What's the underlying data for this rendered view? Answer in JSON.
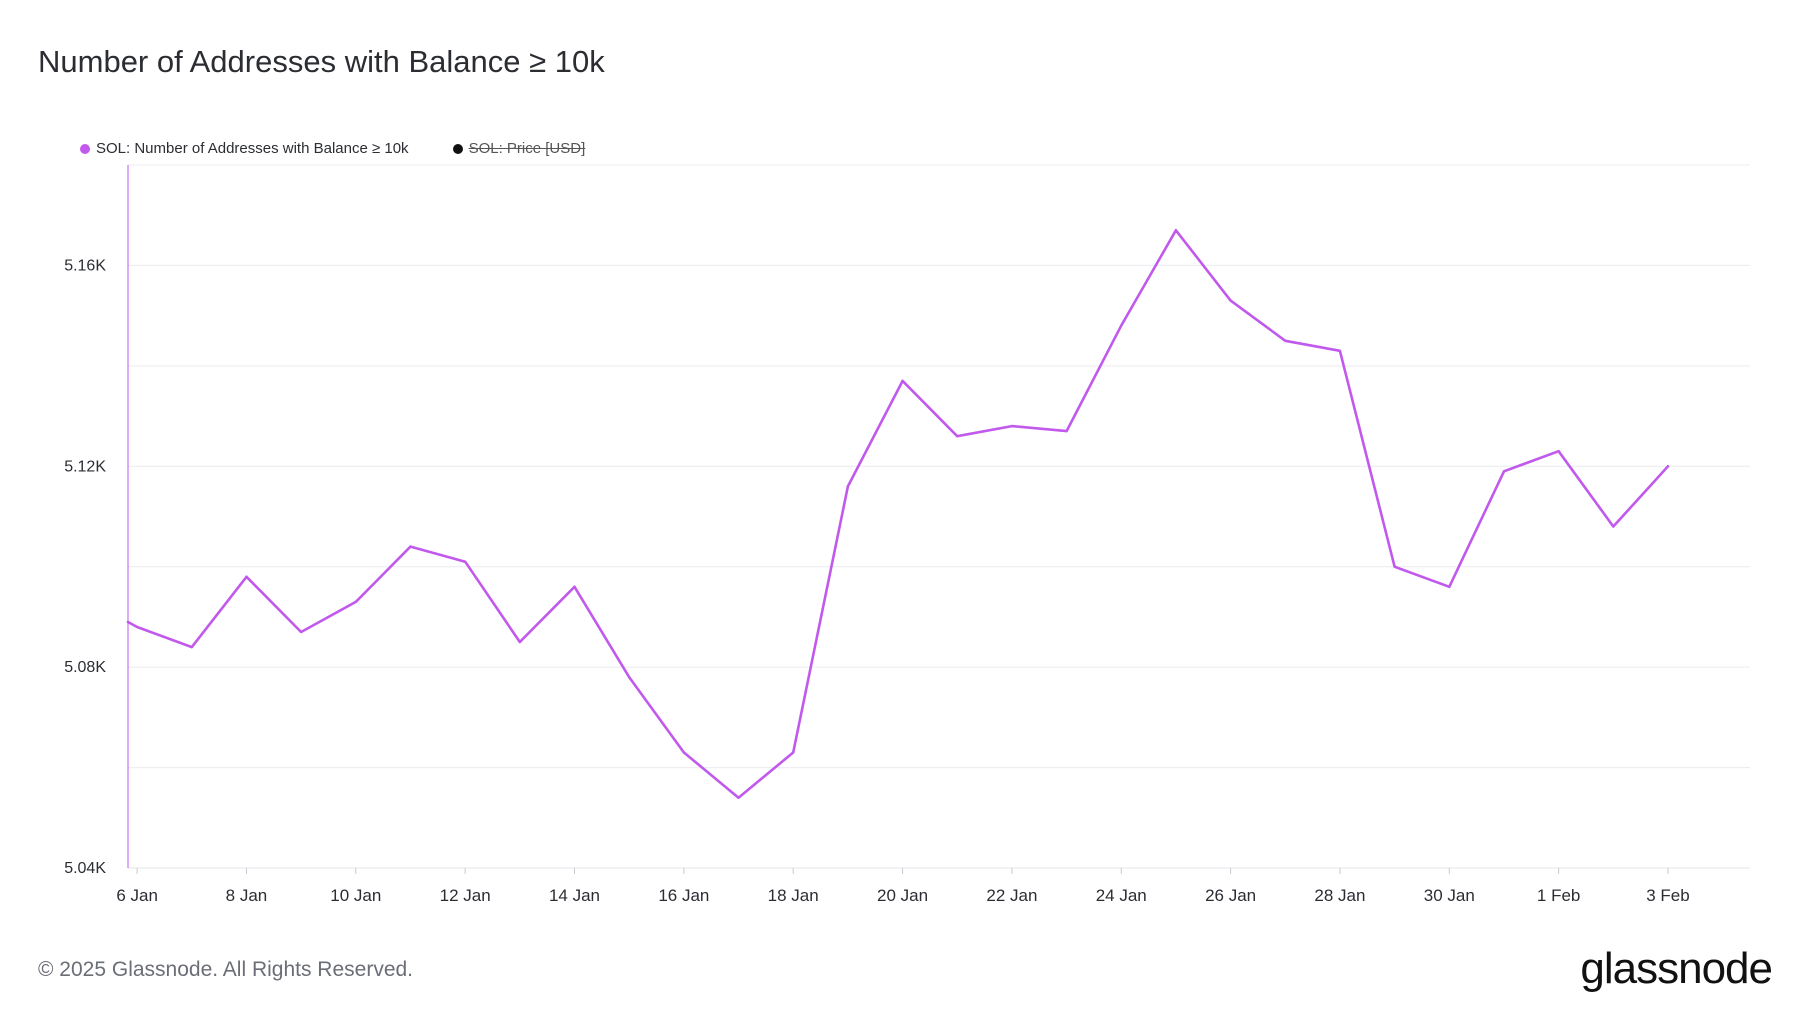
{
  "title": "Number of Addresses with Balance ≥ 10k",
  "legend": [
    {
      "label": "SOL: Number of Addresses with Balance ≥ 10k",
      "color": "#c159ec",
      "active": true
    },
    {
      "label": "SOL: Price [USD]",
      "color": "#111111",
      "active": false
    }
  ],
  "footer": "© 2025 Glassnode. All Rights Reserved.",
  "logo": "glassnode",
  "colors": {
    "series": "#c159ec",
    "grid": "#ececf0",
    "axis": "#c159ec",
    "text": "#2b2d33"
  },
  "chart_data": {
    "type": "line",
    "title": "Number of Addresses with Balance ≥ 10k",
    "xlabel": "",
    "ylabel": "",
    "ylim": [
      5040,
      5180
    ],
    "yticks": [
      5040,
      5080,
      5120,
      5160
    ],
    "ytick_labels": [
      "5.04K",
      "5.08K",
      "5.12K",
      "5.16K"
    ],
    "xlim": [
      "2025-01-05T20:00",
      "2025-02-04T12:00"
    ],
    "xticks": [
      "2025-01-06",
      "2025-01-08",
      "2025-01-10",
      "2025-01-12",
      "2025-01-14",
      "2025-01-16",
      "2025-01-18",
      "2025-01-20",
      "2025-01-22",
      "2025-01-24",
      "2025-01-26",
      "2025-01-28",
      "2025-01-30",
      "2025-02-01",
      "2025-02-03"
    ],
    "xtick_labels": [
      "6 Jan",
      "8 Jan",
      "10 Jan",
      "12 Jan",
      "14 Jan",
      "16 Jan",
      "18 Jan",
      "20 Jan",
      "22 Jan",
      "24 Jan",
      "26 Jan",
      "28 Jan",
      "30 Jan",
      "1 Feb",
      "3 Feb"
    ],
    "grid": true,
    "legend_position": "top-left",
    "series": [
      {
        "name": "SOL: Number of Addresses with Balance ≥ 10k",
        "x": [
          "2025-01-05T20:00",
          "2025-01-06",
          "2025-01-07",
          "2025-01-08",
          "2025-01-09",
          "2025-01-10",
          "2025-01-11",
          "2025-01-12",
          "2025-01-13",
          "2025-01-14",
          "2025-01-15",
          "2025-01-16",
          "2025-01-17",
          "2025-01-18",
          "2025-01-19",
          "2025-01-20",
          "2025-01-21",
          "2025-01-22",
          "2025-01-23",
          "2025-01-24",
          "2025-01-25",
          "2025-01-26",
          "2025-01-27",
          "2025-01-28",
          "2025-01-29",
          "2025-01-30",
          "2025-01-31",
          "2025-02-01",
          "2025-02-02",
          "2025-02-03"
        ],
        "values": [
          5089,
          5088,
          5084,
          5098,
          5087,
          5093,
          5104,
          5101,
          5085,
          5096,
          5078,
          5063,
          5054,
          5063,
          5116,
          5137,
          5126,
          5128,
          5127,
          5148,
          5167,
          5153,
          5145,
          5143,
          5100,
          5096,
          5119,
          5123,
          5108,
          5120
        ]
      }
    ]
  }
}
